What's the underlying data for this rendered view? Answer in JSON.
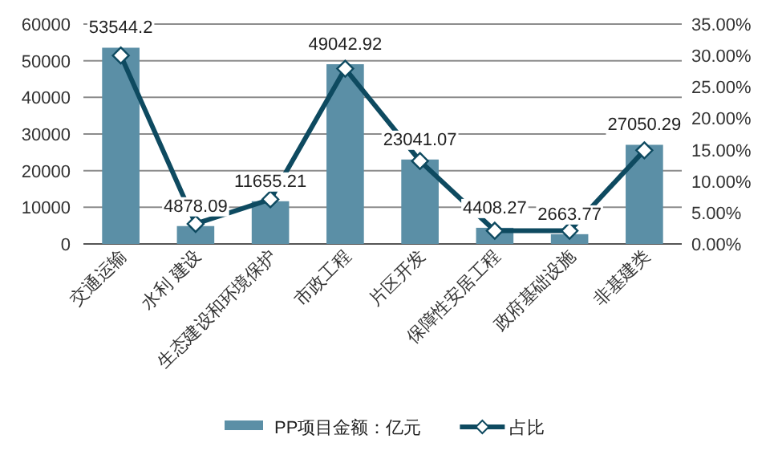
{
  "chart_data": {
    "type": "bar",
    "categories": [
      "交通运输",
      "水利 建设",
      "生态建设和环境保护",
      "市政工程",
      "片区开发",
      "保障性安居工程",
      "政府基础设施",
      "非基建类"
    ],
    "series": [
      {
        "name": "PP项目金额：亿元",
        "color": "#5b8fa6",
        "values": [
          53544.2,
          4878.09,
          11655.21,
          49042.92,
          23041.07,
          4408.27,
          2663.77,
          27050.29
        ],
        "value_labels": [
          "53544.2",
          "4878.09",
          "11655.21",
          "49042.92",
          "23041.07",
          "4408.27",
          "2663.77",
          "27050.29"
        ]
      },
      {
        "name": "占比",
        "type": "line",
        "axis": "y2",
        "color": "#0e4a60",
        "marker": "diamond",
        "values": [
          30.0,
          3.2,
          7.1,
          27.9,
          13.2,
          2.1,
          2.1,
          14.9
        ]
      }
    ],
    "ylim": [
      0,
      60000
    ],
    "yticks": [
      0,
      10000,
      20000,
      30000,
      40000,
      50000,
      60000
    ],
    "y2lim": [
      0,
      35
    ],
    "y2ticks": [
      {
        "value": 0,
        "label": "0.00%"
      },
      {
        "value": 5,
        "label": "5.00%"
      },
      {
        "value": 10,
        "label": "10.00%"
      },
      {
        "value": 15,
        "label": "15.00%"
      },
      {
        "value": 20,
        "label": "20.00%"
      },
      {
        "value": 25,
        "label": "25.00%"
      },
      {
        "value": 30,
        "label": "30.00%"
      },
      {
        "value": 35,
        "label": "35.00%"
      }
    ],
    "grid": "y",
    "legend": "bottom"
  }
}
